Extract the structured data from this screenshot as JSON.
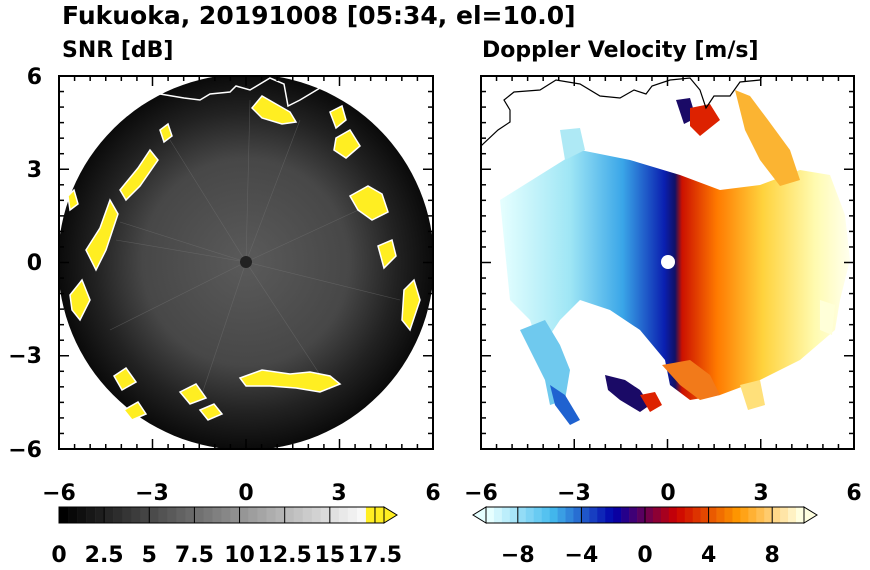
{
  "chart_data": {
    "title": "Fukuoka, 20191008 [05:34, el=10.0]",
    "panels": [
      {
        "type": "heatmap",
        "title": "SNR [dB]",
        "xlim": [
          -6,
          6
        ],
        "ylim": [
          -6,
          6
        ],
        "xticks": [
          "−6",
          "−3",
          "0",
          "3",
          "6"
        ],
        "yticks": [
          "6",
          "3",
          "0",
          "−3",
          "−6"
        ],
        "colorbar": {
          "labels": [
            "0",
            "2.5",
            "5",
            "7.5",
            "10",
            "12.5",
            "15",
            "17.5"
          ],
          "label_values": [
            0,
            2.5,
            5,
            7.5,
            10,
            12.5,
            15,
            17.5
          ],
          "range": [
            0,
            18
          ],
          "extend": "max",
          "colors": [
            "#000000",
            "#ffffff",
            "#ffee22"
          ]
        }
      },
      {
        "type": "heatmap",
        "title": "Doppler Velocity [m/s]",
        "xlim": [
          -6,
          6
        ],
        "ylim": [
          -6,
          6
        ],
        "xticks": [
          "−6",
          "−3",
          "0",
          "3",
          "6"
        ],
        "yticks": [],
        "colorbar": {
          "labels": [
            "−8",
            "−4",
            "0",
            "4",
            "8"
          ],
          "label_values": [
            -8,
            -4,
            0,
            4,
            8
          ],
          "range": [
            -10,
            10
          ],
          "extend": "both",
          "colors": [
            "#e6ffff",
            "#44bbee",
            "#0000aa",
            "#cc0000",
            "#ff9900",
            "#ffffe0"
          ]
        }
      }
    ]
  }
}
